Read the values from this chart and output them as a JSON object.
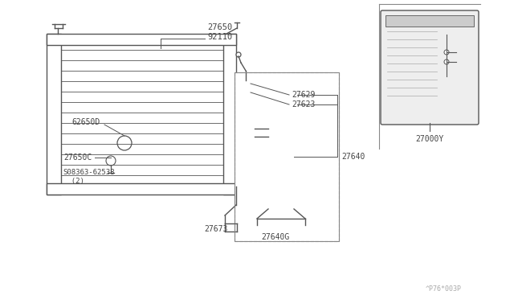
{
  "bg_color": "#ffffff",
  "line_color": "#555555",
  "label_color": "#444444",
  "fig_width": 6.4,
  "fig_height": 3.72,
  "dpi": 100,
  "watermark": "^P76*003P",
  "parts": {
    "condenser_label": "27650\n92110",
    "bracket_label": "62650D",
    "grommet_label": "27650C",
    "bolt_label": "S08363-62538\n  (2)",
    "pipe_label": "27673",
    "tank_label": "27640",
    "tank_bracket_label": "27640G",
    "fitting1_label": "27629",
    "fitting2_label": "27623",
    "manual_label": "27000Y"
  }
}
